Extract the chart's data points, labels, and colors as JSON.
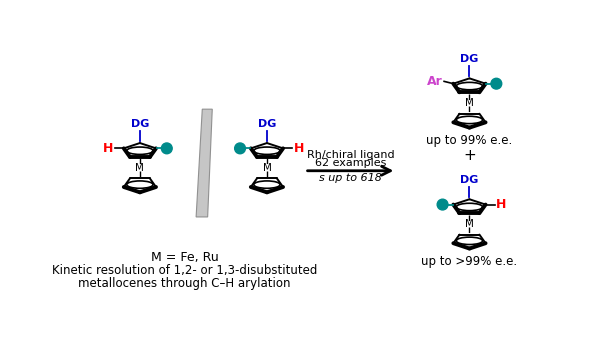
{
  "bg_color": "#ffffff",
  "teal_color": "#008b8b",
  "red_color": "#ff0000",
  "blue_color": "#0000cc",
  "purple_color": "#cc44cc",
  "black_color": "#000000",
  "arrow_text_line1": "Rh/chiral ligand",
  "arrow_text_line2": "62 examples",
  "arrow_text_line3": "s up to 618",
  "bottom_text1": "M = Fe, Ru",
  "bottom_text2": "Kinetic resolution of 1,2- or 1,3-disubstituted",
  "bottom_text3": "metallocenes through C–H arylation",
  "top_right_text": "up to 99% e.e.",
  "plus_text": "+",
  "bottom_right_text": "up to >99% e.e."
}
